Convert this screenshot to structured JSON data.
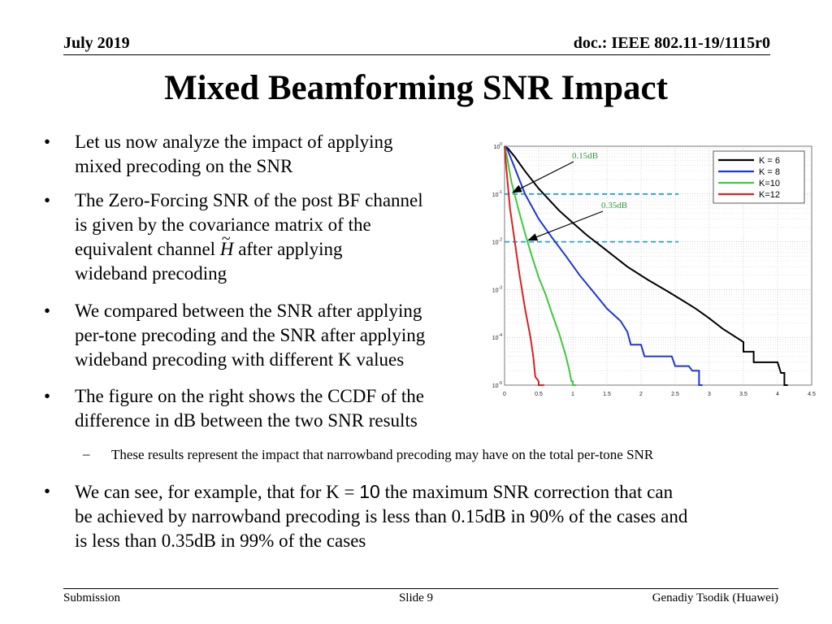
{
  "header": {
    "date": "July 2019",
    "doc": "doc.: IEEE 802.11-19/1115r0"
  },
  "title": "Mixed Beamforming SNR Impact",
  "bullet_glyph": "•",
  "sub_glyph": "–",
  "bullets": [
    {
      "lines": [
        "Let us now analyze the impact of applying",
        "mixed precoding on the SNR"
      ]
    },
    {
      "lines": [
        "The Zero-Forcing SNR of the post BF channel",
        "is given by the covariance matrix of the"
      ],
      "line3_pre": "equivalent channel ",
      "symbol": "H",
      "symbol_accent": "~",
      "line3_post": " after applying",
      "line4": "wideband precoding"
    },
    {
      "lines": [
        "We compared between the SNR after applying",
        "per-tone precoding and the SNR after applying",
        "wideband precoding with different K values"
      ]
    },
    {
      "lines": [
        "The figure on the right shows the CCDF of the",
        "difference in dB between the two SNR results"
      ]
    }
  ],
  "sub_bullet": "These results represent the impact that narrowband precoding may have on the total per-tone SNR",
  "last_bullet": {
    "pre": "We can see, for example, that for K = ",
    "k_value": "10",
    "post": " the maximum SNR correction that can",
    "line2": "be achieved by narrowband precoding is less than 0.15dB in 90% of the cases and",
    "line3": "is less than 0.35dB in 99% of the cases"
  },
  "footer": {
    "left": "Submission",
    "center": "Slide 9",
    "right": "Genadiy Tsodik (Huawei)"
  },
  "chart_data": {
    "type": "line",
    "title": "",
    "xlabel": "",
    "ylabel": "",
    "xlim": [
      0,
      4.5
    ],
    "ylim": [
      1e-05,
      1
    ],
    "y_scale": "log",
    "grid": true,
    "legend_position": "top-right",
    "x_ticks": [
      "0",
      "0.5",
      "1",
      "1.5",
      "2",
      "2.5",
      "3",
      "3.5",
      "4",
      "4.5"
    ],
    "y_ticks": [
      {
        "base": "10",
        "exp": "0"
      },
      {
        "base": "10",
        "exp": "-1"
      },
      {
        "base": "10",
        "exp": "-2"
      },
      {
        "base": "10",
        "exp": "-3"
      },
      {
        "base": "10",
        "exp": "-4"
      },
      {
        "base": "10",
        "exp": "-5"
      }
    ],
    "series": [
      {
        "name": "K = 6",
        "color": "#000000",
        "points": [
          [
            0,
            1
          ],
          [
            0.05,
            0.9
          ],
          [
            0.15,
            0.6
          ],
          [
            0.3,
            0.3
          ],
          [
            0.5,
            0.13
          ],
          [
            0.8,
            0.045
          ],
          [
            1.0,
            0.025
          ],
          [
            1.2,
            0.014
          ],
          [
            1.5,
            0.0065
          ],
          [
            1.8,
            0.003
          ],
          [
            2.1,
            0.0016
          ],
          [
            2.4,
            0.0009
          ],
          [
            2.6,
            0.0006
          ],
          [
            2.8,
            0.0004
          ],
          [
            3.0,
            0.00025
          ],
          [
            3.2,
            0.00015
          ],
          [
            3.5,
            8e-05
          ],
          [
            3.5,
            5e-05
          ],
          [
            3.65,
            5e-05
          ],
          [
            3.65,
            3e-05
          ],
          [
            4.0,
            3e-05
          ],
          [
            4.05,
            1.8e-05
          ],
          [
            4.1,
            1.8e-05
          ],
          [
            4.1,
            1e-05
          ],
          [
            4.15,
            1e-05
          ]
        ]
      },
      {
        "name": "K = 8",
        "color": "#1f35d6",
        "points": [
          [
            0,
            1
          ],
          [
            0.05,
            0.8
          ],
          [
            0.15,
            0.35
          ],
          [
            0.3,
            0.1
          ],
          [
            0.5,
            0.03
          ],
          [
            0.7,
            0.012
          ],
          [
            0.9,
            0.005
          ],
          [
            1.1,
            0.002
          ],
          [
            1.3,
            0.0009
          ],
          [
            1.5,
            0.0004
          ],
          [
            1.7,
            0.00022
          ],
          [
            1.8,
            0.00013
          ],
          [
            1.85,
            7e-05
          ],
          [
            2.0,
            7e-05
          ],
          [
            2.05,
            4e-05
          ],
          [
            2.45,
            4e-05
          ],
          [
            2.5,
            2.5e-05
          ],
          [
            2.7,
            2.5e-05
          ],
          [
            2.75,
            2e-05
          ],
          [
            2.85,
            2e-05
          ],
          [
            2.85,
            1e-05
          ],
          [
            2.9,
            1e-05
          ]
        ]
      },
      {
        "name": "K=10",
        "color": "#3ec93e",
        "points": [
          [
            0,
            1
          ],
          [
            0.04,
            0.55
          ],
          [
            0.1,
            0.18
          ],
          [
            0.2,
            0.05
          ],
          [
            0.3,
            0.015
          ],
          [
            0.4,
            0.005
          ],
          [
            0.5,
            0.0018
          ],
          [
            0.6,
            0.0008
          ],
          [
            0.7,
            0.0003
          ],
          [
            0.8,
            0.00012
          ],
          [
            0.9,
            4e-05
          ],
          [
            0.95,
            2e-05
          ],
          [
            0.98,
            1.2e-05
          ],
          [
            1.0,
            1.2e-05
          ],
          [
            1.0,
            1e-05
          ],
          [
            1.05,
            1e-05
          ]
        ]
      },
      {
        "name": "K=12",
        "color": "#d62222",
        "points": [
          [
            0,
            1
          ],
          [
            0.03,
            0.3
          ],
          [
            0.08,
            0.05
          ],
          [
            0.15,
            0.01
          ],
          [
            0.22,
            0.002
          ],
          [
            0.3,
            0.0004
          ],
          [
            0.38,
            0.0001
          ],
          [
            0.42,
            4e-05
          ],
          [
            0.45,
            1.5e-05
          ],
          [
            0.5,
            1.2e-05
          ],
          [
            0.5,
            1e-05
          ],
          [
            0.58,
            1e-05
          ]
        ]
      }
    ],
    "reference_lines": [
      {
        "y": 0.1,
        "color": "#1fa0d8",
        "style": "dashed"
      },
      {
        "y": 0.01,
        "color": "#1fa0d8",
        "style": "dashed"
      }
    ],
    "annotations": [
      {
        "text": "0.15dB",
        "color": "#2e9a3a",
        "arrow_to": [
          0.12,
          0.1
        ]
      },
      {
        "text": "0.35dB",
        "color": "#2e9a3a",
        "arrow_to": [
          0.35,
          0.01
        ]
      }
    ]
  }
}
